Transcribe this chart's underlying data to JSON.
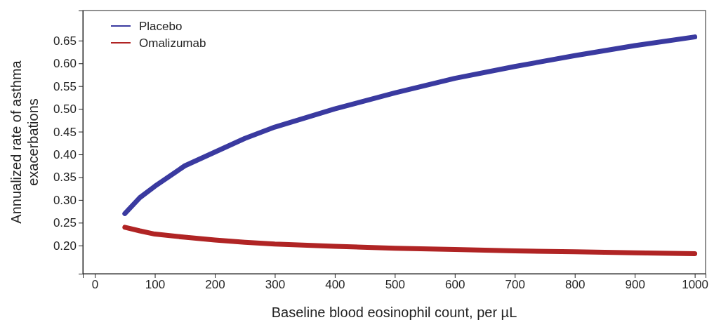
{
  "chart_data": {
    "type": "line",
    "xlabel": "Baseline blood eosinophil count, per µL",
    "ylabel": "Annualized rate of asthma exacerbations",
    "x": [
      50,
      75,
      100,
      150,
      200,
      250,
      300,
      400,
      500,
      600,
      700,
      800,
      900,
      1000
    ],
    "series": [
      {
        "name": "Placebo",
        "color": "#3a3aa0",
        "values": [
          0.27,
          0.305,
          0.33,
          0.375,
          0.405,
          0.435,
          0.46,
          0.5,
          0.535,
          0.567,
          0.593,
          0.617,
          0.639,
          0.658
        ]
      },
      {
        "name": "Omalizumab",
        "color": "#b02424",
        "values": [
          0.24,
          0.232,
          0.225,
          0.218,
          0.212,
          0.207,
          0.203,
          0.198,
          0.194,
          0.191,
          0.188,
          0.186,
          0.184,
          0.182
        ]
      }
    ],
    "xlim": [
      -20,
      1018
    ],
    "ylim": [
      0.138,
      0.716
    ],
    "xticks": [
      0,
      100,
      200,
      300,
      400,
      500,
      600,
      700,
      800,
      900,
      1000
    ],
    "yticks": [
      {
        "value": 0.2,
        "label": "0.20"
      },
      {
        "value": 0.25,
        "label": "0.25"
      },
      {
        "value": 0.3,
        "label": "0.30"
      },
      {
        "value": 0.35,
        "label": "0.35"
      },
      {
        "value": 0.4,
        "label": "0.40"
      },
      {
        "value": 0.45,
        "label": "0.45"
      },
      {
        "value": 0.5,
        "label": "0.50"
      },
      {
        "value": 0.55,
        "label": "0.55"
      },
      {
        "value": 0.6,
        "label": "0.60"
      },
      {
        "value": 0.65,
        "label": "0.65"
      }
    ],
    "legend": "top left",
    "grid": false,
    "line_style": "solid",
    "marker": "none"
  }
}
